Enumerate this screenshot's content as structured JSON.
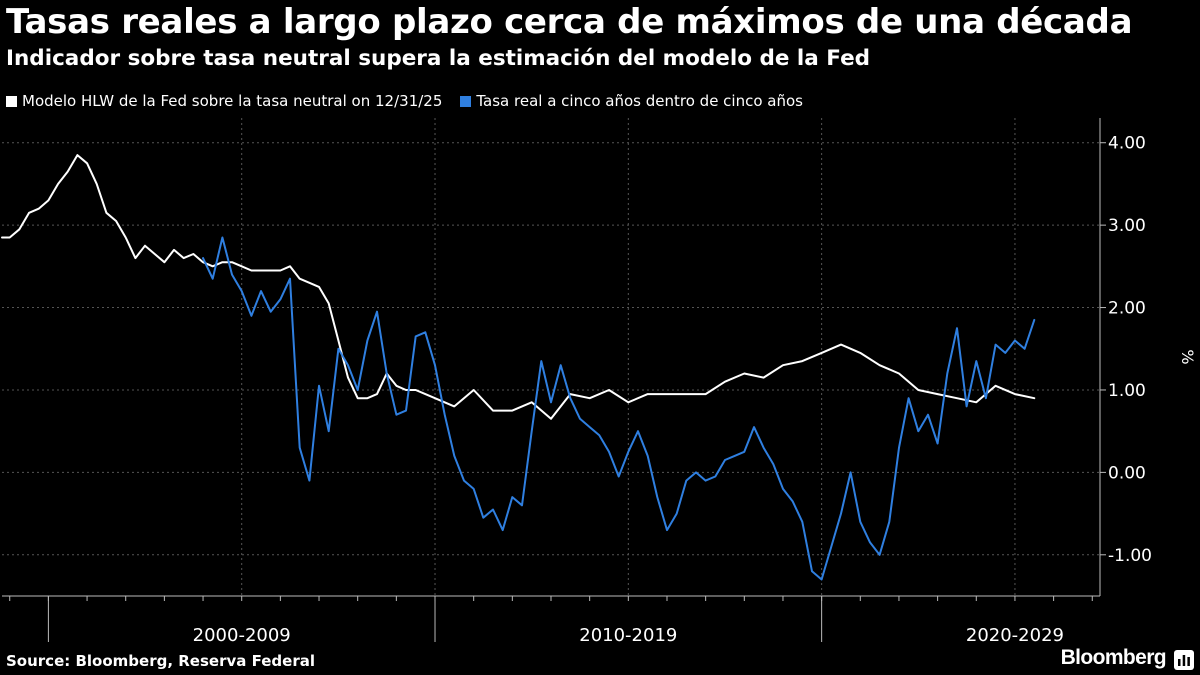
{
  "header": {
    "title": "Tasas reales a largo plazo cerca de máximos de una década",
    "subtitle": "Indicador sobre tasa neutral supera la estimación del modelo de la Fed"
  },
  "footer": {
    "source": "Source: Bloomberg, Reserva Federal",
    "brand": "Bloomberg",
    "brand_icon": "bloomberg-terminal-icon"
  },
  "chart_data": {
    "type": "line",
    "ylabel": "%",
    "ylim": [
      -1.5,
      4.3
    ],
    "yticks": [
      4.0,
      3.0,
      2.0,
      1.0,
      0.0,
      -1.0
    ],
    "ytick_labels": [
      "4.00",
      "3.00",
      "2.00",
      "1.00",
      "0.00",
      "-1.00"
    ],
    "xlim": [
      1998.8,
      2027.2
    ],
    "decades": [
      {
        "label": "2000-2009",
        "start": 2000,
        "end": 2010
      },
      {
        "label": "2010-2019",
        "start": 2010,
        "end": 2020
      },
      {
        "label": "2020-2029",
        "start": 2020,
        "end": 2030
      }
    ],
    "grid": true,
    "legend_position": "top-left",
    "colors": {
      "hlw": "#ffffff",
      "real5y5y": "#2f7fe0",
      "background": "#000000",
      "grid": "#555555"
    },
    "series": [
      {
        "name": "Modelo HLW de la Fed sobre la tasa neutral on 12/31/25",
        "color": "#ffffff",
        "x": [
          1998.8,
          1999.0,
          1999.25,
          1999.5,
          1999.75,
          2000.0,
          2000.25,
          2000.5,
          2000.75,
          2001.0,
          2001.25,
          2001.5,
          2001.75,
          2002.0,
          2002.25,
          2002.5,
          2002.75,
          2003.0,
          2003.25,
          2003.5,
          2003.75,
          2004.0,
          2004.25,
          2004.5,
          2004.75,
          2005.0,
          2005.25,
          2005.5,
          2005.75,
          2006.0,
          2006.25,
          2006.5,
          2006.75,
          2007.0,
          2007.25,
          2007.5,
          2007.75,
          2008.0,
          2008.25,
          2008.5,
          2008.75,
          2009.0,
          2009.25,
          2009.5,
          2009.75,
          2010.0,
          2010.5,
          2011.0,
          2011.5,
          2012.0,
          2012.5,
          2013.0,
          2013.5,
          2014.0,
          2014.5,
          2015.0,
          2015.5,
          2016.0,
          2016.5,
          2017.0,
          2017.5,
          2018.0,
          2018.5,
          2019.0,
          2019.5,
          2020.0,
          2020.5,
          2021.0,
          2021.5,
          2022.0,
          2022.5,
          2023.0,
          2023.5,
          2024.0,
          2024.5,
          2025.0,
          2025.5
        ],
        "values": [
          2.85,
          2.85,
          2.95,
          3.15,
          3.2,
          3.3,
          3.5,
          3.65,
          3.85,
          3.75,
          3.5,
          3.15,
          3.05,
          2.85,
          2.6,
          2.75,
          2.65,
          2.55,
          2.7,
          2.6,
          2.65,
          2.55,
          2.5,
          2.55,
          2.55,
          2.5,
          2.45,
          2.45,
          2.45,
          2.45,
          2.5,
          2.35,
          2.3,
          2.25,
          2.05,
          1.6,
          1.15,
          0.9,
          0.9,
          0.95,
          1.2,
          1.05,
          1.0,
          1.0,
          0.95,
          0.9,
          0.8,
          1.0,
          0.75,
          0.75,
          0.85,
          0.65,
          0.95,
          0.9,
          1.0,
          0.85,
          0.95,
          0.95,
          0.95,
          0.95,
          1.1,
          1.2,
          1.15,
          1.3,
          1.35,
          1.45,
          1.55,
          1.45,
          1.3,
          1.2,
          1.0,
          0.95,
          0.9,
          0.85,
          1.05,
          0.95,
          0.9
        ]
      },
      {
        "name": "Tasa real a cinco años dentro de cinco años",
        "color": "#2f7fe0",
        "x": [
          2004.0,
          2004.25,
          2004.5,
          2004.75,
          2005.0,
          2005.25,
          2005.5,
          2005.75,
          2006.0,
          2006.25,
          2006.5,
          2006.75,
          2007.0,
          2007.25,
          2007.5,
          2007.75,
          2008.0,
          2008.25,
          2008.5,
          2008.75,
          2009.0,
          2009.25,
          2009.5,
          2009.75,
          2010.0,
          2010.25,
          2010.5,
          2010.75,
          2011.0,
          2011.25,
          2011.5,
          2011.75,
          2012.0,
          2012.25,
          2012.5,
          2012.75,
          2013.0,
          2013.25,
          2013.5,
          2013.75,
          2014.0,
          2014.25,
          2014.5,
          2014.75,
          2015.0,
          2015.25,
          2015.5,
          2015.75,
          2016.0,
          2016.25,
          2016.5,
          2016.75,
          2017.0,
          2017.25,
          2017.5,
          2017.75,
          2018.0,
          2018.25,
          2018.5,
          2018.75,
          2019.0,
          2019.25,
          2019.5,
          2019.75,
          2020.0,
          2020.25,
          2020.5,
          2020.75,
          2021.0,
          2021.25,
          2021.5,
          2021.75,
          2022.0,
          2022.25,
          2022.5,
          2022.75,
          2023.0,
          2023.25,
          2023.5,
          2023.75,
          2024.0,
          2024.25,
          2024.5,
          2024.75,
          2025.0,
          2025.25,
          2025.5
        ],
        "values": [
          2.6,
          2.35,
          2.85,
          2.4,
          2.2,
          1.9,
          2.2,
          1.95,
          2.1,
          2.35,
          0.3,
          -0.1,
          1.05,
          0.5,
          1.5,
          1.3,
          1.0,
          1.6,
          1.95,
          1.2,
          0.7,
          0.75,
          1.65,
          1.7,
          1.3,
          0.7,
          0.2,
          -0.1,
          -0.2,
          -0.55,
          -0.45,
          -0.7,
          -0.3,
          -0.4,
          0.5,
          1.35,
          0.85,
          1.3,
          0.9,
          0.65,
          0.55,
          0.45,
          0.25,
          -0.05,
          0.25,
          0.5,
          0.2,
          -0.3,
          -0.7,
          -0.5,
          -0.1,
          0.0,
          -0.1,
          -0.05,
          0.15,
          0.2,
          0.25,
          0.55,
          0.3,
          0.1,
          -0.2,
          -0.35,
          -0.6,
          -1.2,
          -1.3,
          -0.9,
          -0.5,
          0.0,
          -0.6,
          -0.85,
          -1.0,
          -0.6,
          0.3,
          0.9,
          0.5,
          0.7,
          0.35,
          1.2,
          1.75,
          0.8,
          1.35,
          0.9,
          1.55,
          1.45,
          1.6,
          1.5,
          1.85
        ]
      }
    ]
  }
}
